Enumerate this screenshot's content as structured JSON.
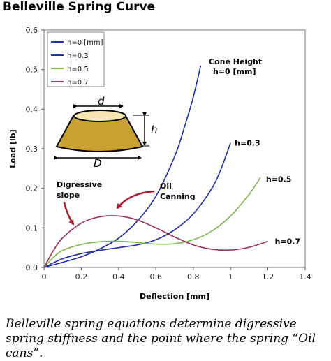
{
  "title": "Belleville Spring Curve",
  "caption": "Belleville spring equations determine digressive spring stiffness and the point where the spring “Oil cans”.",
  "chart_data": {
    "type": "line",
    "xlabel": "Deflection [mm]",
    "ylabel": "Load [lb]",
    "xlim": [
      0,
      1.4
    ],
    "ylim": [
      0,
      0.6
    ],
    "xticks": [
      "0",
      "0.2",
      "0.4",
      "0.6",
      "0.8",
      "1",
      "1.2",
      "1.4"
    ],
    "yticks": [
      "0.0",
      "0.1",
      "0.2",
      "0.3",
      "0.4",
      "0.5",
      "0.6"
    ],
    "grid": false,
    "legend_position": "top-left",
    "series": [
      {
        "name": "h=0 [mm]",
        "color": "#1f2db0",
        "label": "",
        "x": [
          0,
          0.1,
          0.2,
          0.3,
          0.4,
          0.5,
          0.6,
          0.7,
          0.75,
          0.8,
          0.84
        ],
        "y": [
          0,
          0.013,
          0.027,
          0.047,
          0.074,
          0.117,
          0.18,
          0.28,
          0.35,
          0.43,
          0.51
        ]
      },
      {
        "name": "h=0.3",
        "color": "#1f2db0",
        "label": "h=0.3",
        "x": [
          0,
          0.1,
          0.2,
          0.3,
          0.4,
          0.5,
          0.6,
          0.7,
          0.8,
          0.9,
          0.95,
          1.0
        ],
        "y": [
          0,
          0.022,
          0.035,
          0.043,
          0.05,
          0.057,
          0.07,
          0.095,
          0.135,
          0.2,
          0.25,
          0.315
        ]
      },
      {
        "name": "h=0.5",
        "color": "#7ab648",
        "label": "h=0.5",
        "x": [
          0,
          0.05,
          0.1,
          0.2,
          0.3,
          0.4,
          0.5,
          0.6,
          0.7,
          0.8,
          0.9,
          1.0,
          1.1,
          1.16
        ],
        "y": [
          0,
          0.025,
          0.043,
          0.058,
          0.065,
          0.066,
          0.063,
          0.059,
          0.06,
          0.07,
          0.092,
          0.13,
          0.185,
          0.227
        ]
      },
      {
        "name": "h=0.7",
        "color": "#a0304f",
        "label": "h=0.7",
        "x": [
          0,
          0.05,
          0.1,
          0.2,
          0.3,
          0.4,
          0.5,
          0.6,
          0.7,
          0.8,
          0.9,
          1.0,
          1.1,
          1.2
        ],
        "y": [
          0,
          0.042,
          0.075,
          0.112,
          0.128,
          0.13,
          0.12,
          0.1,
          0.077,
          0.057,
          0.046,
          0.044,
          0.051,
          0.066
        ]
      }
    ],
    "annotations": {
      "cone_height_line1": "Cone Height",
      "cone_height_line2": "h=0 [mm]",
      "digressive_line1": "Digressive",
      "digressive_line2": "slope",
      "oil_line1": "Oil",
      "oil_line2": "Canning",
      "arrow_color": "#b01a2e"
    },
    "diagram": {
      "d_label": "d",
      "D_label": "D",
      "h_label": "h",
      "fill_color": "#c9a032"
    }
  }
}
